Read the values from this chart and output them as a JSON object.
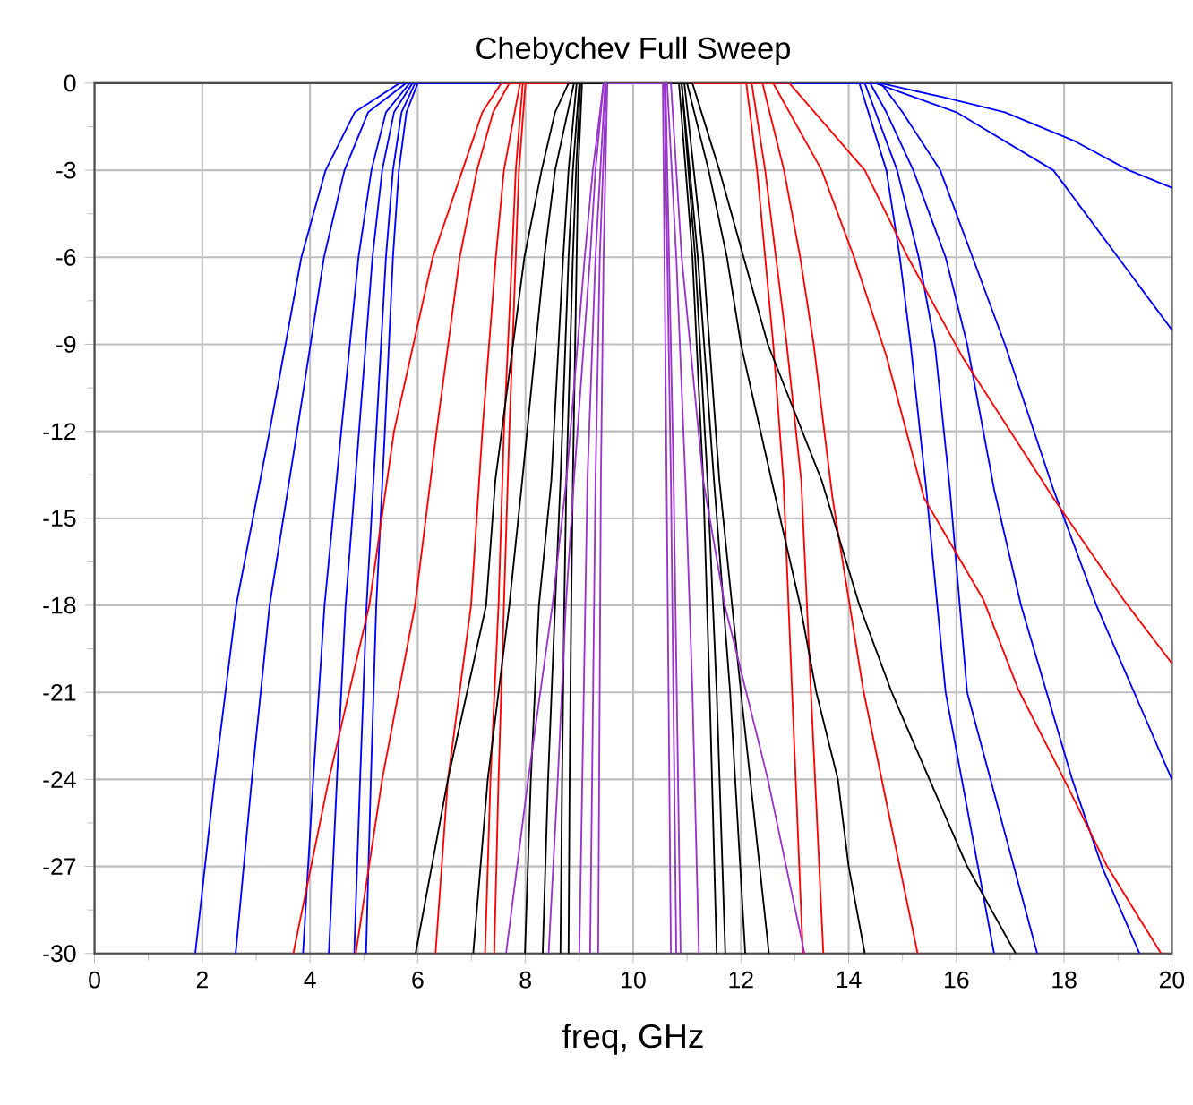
{
  "chart_data": {
    "type": "line",
    "title": "Chebychev Full Sweep",
    "xlabel": "freq, GHz",
    "xlim": [
      0,
      20
    ],
    "ylim": [
      -30,
      0
    ],
    "xticks": [
      0,
      2,
      4,
      6,
      8,
      10,
      12,
      14,
      16,
      18,
      20
    ],
    "yticks": [
      -30,
      -27,
      -24,
      -21,
      -18,
      -15,
      -12,
      -9,
      -6,
      -3,
      0
    ],
    "grid": true,
    "line_style": "solid",
    "series": [
      {
        "color": "#0000ff",
        "x": [
          1.87,
          2.23,
          2.63,
          3.25,
          3.84,
          4.29,
          4.83,
          5.66,
          14.6,
          15.8,
          16.9,
          18.2,
          19.2,
          20
        ],
        "values": [
          -30,
          -24,
          -18,
          -12,
          -6,
          -3,
          -1,
          0,
          0,
          -0.5,
          -1,
          -2,
          -3,
          -3.6
        ]
      },
      {
        "color": "#0000ff",
        "x": [
          2.62,
          2.92,
          3.25,
          3.76,
          4.26,
          4.64,
          5.08,
          5.78,
          14.5,
          16.0,
          17.8,
          19.0,
          20
        ],
        "values": [
          -30,
          -24,
          -18,
          -12,
          -6,
          -3,
          -1,
          0,
          0,
          -1,
          -3,
          -6,
          -8.5
        ]
      },
      {
        "color": "#0000ff",
        "x": [
          3.87,
          4.06,
          4.27,
          4.58,
          4.9,
          5.14,
          5.41,
          5.85,
          14.6,
          15.0,
          15.7,
          16.3,
          16.9,
          17.8,
          18.6,
          19.3,
          20
        ],
        "values": [
          -30,
          -24,
          -18,
          -12,
          -6,
          -3,
          -1,
          0,
          0,
          -1,
          -3,
          -6,
          -9,
          -14,
          -18,
          -21,
          -24
        ]
      },
      {
        "color": "#0000ff",
        "x": [
          4.35,
          4.5,
          4.66,
          4.91,
          5.16,
          5.34,
          5.56,
          5.9,
          14.4,
          14.7,
          15.2,
          15.8,
          16.2,
          16.7,
          17.2,
          18.15,
          18.7,
          19.4
        ],
        "values": [
          -30,
          -24,
          -18,
          -12,
          -6,
          -3,
          -1,
          0,
          0,
          -1,
          -3,
          -6,
          -9,
          -14,
          -18,
          -24,
          -27,
          -30
        ]
      },
      {
        "color": "#0000ff",
        "x": [
          4.82,
          4.93,
          5.05,
          5.23,
          5.41,
          5.54,
          5.7,
          5.95,
          14.3,
          14.9,
          15.3,
          15.6,
          15.88,
          16.2,
          17.5
        ],
        "values": [
          -30,
          -24,
          -18,
          -12,
          -6,
          -3,
          -1,
          0,
          0,
          -3,
          -6,
          -9,
          -14,
          -21,
          -30
        ]
      },
      {
        "color": "#0000ff",
        "x": [
          5.04,
          5.13,
          5.23,
          5.39,
          5.54,
          5.65,
          5.79,
          6.0,
          14.2,
          14.7,
          14.95,
          15.15,
          15.44,
          15.8,
          16.7
        ],
        "values": [
          -30,
          -24,
          -18,
          -12,
          -6,
          -3,
          -1,
          0,
          0,
          -3,
          -6,
          -9,
          -14,
          -21,
          -30
        ]
      },
      {
        "color": "#ff0000",
        "x": [
          3.69,
          4.35,
          5.1,
          5.56,
          6.28,
          6.83,
          7.2,
          7.55,
          12.9,
          14.3,
          15.1,
          16.1,
          17.8,
          19.1,
          20
        ],
        "values": [
          -30,
          -24,
          -18,
          -12,
          -6,
          -3,
          -1,
          0,
          0,
          -3,
          -6,
          -9.4,
          -14.3,
          -17.8,
          -20
        ]
      },
      {
        "color": "#ff0000",
        "x": [
          4.85,
          5.34,
          5.95,
          6.35,
          6.78,
          7.1,
          7.4,
          7.7,
          12.6,
          13.5,
          14.1,
          14.7,
          15.4,
          16.5,
          17.15,
          18.0,
          18.8,
          19.8
        ],
        "values": [
          -30,
          -24,
          -18,
          -12,
          -6,
          -3,
          -1,
          0,
          0,
          -3,
          -6,
          -9.4,
          -14.3,
          -17.8,
          -20.9,
          -24,
          -27,
          -30
        ]
      },
      {
        "color": "#ff0000",
        "x": [
          6.33,
          6.56,
          6.99,
          7.2,
          7.45,
          7.6,
          7.9,
          12.4,
          12.8,
          13.1,
          13.35,
          13.7,
          14.27,
          15.28
        ],
        "values": [
          -30,
          -24,
          -18,
          -12,
          -6,
          -3,
          0,
          0,
          -3,
          -6,
          -9,
          -14.3,
          -20.9,
          -30
        ]
      },
      {
        "color": "#ff0000",
        "x": [
          7.25,
          7.35,
          7.5,
          7.6,
          7.75,
          7.82,
          7.95,
          12.2,
          12.45,
          12.65,
          12.85,
          13.12,
          13.3,
          13.53
        ],
        "values": [
          -30,
          -24,
          -18,
          -12,
          -6,
          -3,
          0,
          0,
          -3,
          -6,
          -9,
          -13.7,
          -21,
          -30
        ]
      },
      {
        "color": "#ff0000",
        "x": [
          7.42,
          7.5,
          7.6,
          7.7,
          7.82,
          7.88,
          8.0,
          12.1,
          12.3,
          12.45,
          12.6,
          12.79,
          12.95,
          13.15
        ],
        "values": [
          -30,
          -24,
          -18,
          -12,
          -6,
          -3,
          0,
          0,
          -3,
          -6,
          -9,
          -13.7,
          -21,
          -30
        ]
      },
      {
        "color": "#000000",
        "x": [
          5.96,
          6.56,
          7.27,
          7.44,
          7.98,
          8.3,
          8.55,
          8.8,
          11.1,
          11.6,
          12.05,
          12.5,
          13.5,
          14.2,
          14.8,
          15.5,
          16.2,
          17.1
        ],
        "values": [
          -30,
          -24,
          -18,
          -13.7,
          -6,
          -3,
          -1,
          0,
          0,
          -3,
          -6,
          -9,
          -13.7,
          -18,
          -21,
          -24,
          -27,
          -30
        ]
      },
      {
        "color": "#000000",
        "x": [
          7.03,
          7.3,
          7.7,
          7.94,
          8.35,
          8.55,
          8.9,
          11.0,
          11.4,
          11.74,
          12.0,
          12.57,
          13.1,
          13.4,
          13.8,
          14.0,
          14.3
        ],
        "values": [
          -30,
          -24,
          -18,
          -13.7,
          -6,
          -3,
          0,
          0,
          -3,
          -6,
          -9,
          -13.7,
          -18,
          -21,
          -24,
          -27,
          -30
        ]
      },
      {
        "color": "#000000",
        "x": [
          7.99,
          8.1,
          8.25,
          8.48,
          8.7,
          8.8,
          8.95,
          10.95,
          11.3,
          11.6,
          12.0,
          12.52
        ],
        "values": [
          -30,
          -24,
          -18,
          -13.7,
          -6,
          -3,
          0,
          0,
          -6,
          -13.7,
          -21,
          -30
        ]
      },
      {
        "color": "#000000",
        "x": [
          8.32,
          8.42,
          8.55,
          8.65,
          8.8,
          8.88,
          9.0,
          10.9,
          11.2,
          11.5,
          11.8,
          12.08
        ],
        "values": [
          -30,
          -24,
          -18,
          -13.7,
          -6,
          -3,
          0,
          0,
          -6,
          -13.7,
          -21,
          -30
        ]
      },
      {
        "color": "#000000",
        "x": [
          8.65,
          8.68,
          8.72,
          8.76,
          8.88,
          8.94,
          9.02,
          10.9,
          11.15,
          11.38,
          11.55,
          11.71
        ],
        "values": [
          -30,
          -24,
          -18,
          -13.7,
          -6,
          -3,
          0,
          0,
          -6,
          -13.7,
          -21,
          -30
        ]
      },
      {
        "color": "#000000",
        "x": [
          8.8,
          8.82,
          8.85,
          8.88,
          8.95,
          8.98,
          9.05,
          10.85,
          11.1,
          11.3,
          11.42,
          11.55
        ],
        "values": [
          -30,
          -24,
          -18,
          -13.7,
          -6,
          -3,
          0,
          0,
          -6,
          -13.7,
          -21,
          -30
        ]
      },
      {
        "color": "#9933cc",
        "x": [
          7.64,
          8.05,
          8.5,
          8.76,
          9.1,
          9.25,
          9.45,
          10.7,
          10.9,
          11.3,
          11.7,
          12.5,
          13.18
        ],
        "values": [
          -30,
          -24,
          -18,
          -13.7,
          -6,
          -3,
          0,
          0,
          -6,
          -13.7,
          -18,
          -24,
          -30
        ]
      },
      {
        "color": "#9933cc",
        "x": [
          8.43,
          8.6,
          8.75,
          8.9,
          9.2,
          9.3,
          9.45,
          10.63,
          10.8,
          10.97,
          11.1,
          11.22
        ],
        "values": [
          -30,
          -24,
          -18,
          -13.7,
          -6,
          -3,
          0,
          0,
          -6,
          -13.7,
          -21,
          -30
        ]
      },
      {
        "color": "#9933cc",
        "x": [
          9.0,
          9.15,
          9.3,
          9.48,
          10.6,
          10.75,
          10.88
        ],
        "values": [
          -30,
          -13.7,
          -6,
          0,
          0,
          -13.7,
          -30
        ]
      },
      {
        "color": "#9933cc",
        "x": [
          9.2,
          9.3,
          9.38,
          9.5,
          10.58,
          10.7,
          10.8
        ],
        "values": [
          -30,
          -13.7,
          -6,
          0,
          0,
          -13.7,
          -30
        ]
      },
      {
        "color": "#9933cc",
        "x": [
          9.35,
          9.4,
          9.45,
          9.52,
          10.55,
          10.62,
          10.7
        ],
        "values": [
          -30,
          -13.7,
          -6,
          0,
          0,
          -13.7,
          -30
        ]
      }
    ]
  }
}
